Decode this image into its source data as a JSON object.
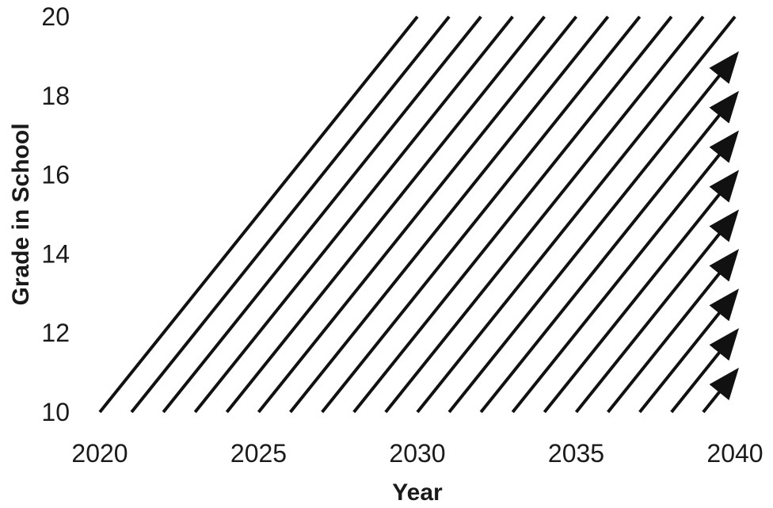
{
  "chart_data": {
    "type": "line",
    "title": "",
    "xlabel": "Year",
    "ylabel": "Grade in School",
    "xlim": [
      2020,
      2040
    ],
    "ylim": [
      10,
      20
    ],
    "x_ticks": [
      "2020",
      "2025",
      "2030",
      "2035",
      "2040"
    ],
    "y_ticks": [
      "10",
      "12",
      "14",
      "16",
      "18",
      "20"
    ],
    "grid": false,
    "legend": "none",
    "line_color": "#111111",
    "series": [
      {
        "x": [
          2020,
          2030
        ],
        "y": [
          10,
          20
        ],
        "arrow": false
      },
      {
        "x": [
          2021,
          2031
        ],
        "y": [
          10,
          20
        ],
        "arrow": false
      },
      {
        "x": [
          2022,
          2032
        ],
        "y": [
          10,
          20
        ],
        "arrow": false
      },
      {
        "x": [
          2023,
          2033
        ],
        "y": [
          10,
          20
        ],
        "arrow": false
      },
      {
        "x": [
          2024,
          2034
        ],
        "y": [
          10,
          20
        ],
        "arrow": false
      },
      {
        "x": [
          2025,
          2035
        ],
        "y": [
          10,
          20
        ],
        "arrow": false
      },
      {
        "x": [
          2026,
          2036
        ],
        "y": [
          10,
          20
        ],
        "arrow": false
      },
      {
        "x": [
          2027,
          2037
        ],
        "y": [
          10,
          20
        ],
        "arrow": false
      },
      {
        "x": [
          2028,
          2038
        ],
        "y": [
          10,
          20
        ],
        "arrow": false
      },
      {
        "x": [
          2029,
          2039
        ],
        "y": [
          10,
          20
        ],
        "arrow": false
      },
      {
        "x": [
          2030,
          2040
        ],
        "y": [
          10,
          20
        ],
        "arrow": false
      },
      {
        "x": [
          2031,
          2040
        ],
        "y": [
          10,
          19
        ],
        "arrow": true
      },
      {
        "x": [
          2032,
          2040
        ],
        "y": [
          10,
          18
        ],
        "arrow": true
      },
      {
        "x": [
          2033,
          2040
        ],
        "y": [
          10,
          17
        ],
        "arrow": true
      },
      {
        "x": [
          2034,
          2040
        ],
        "y": [
          10,
          16
        ],
        "arrow": true
      },
      {
        "x": [
          2035,
          2040
        ],
        "y": [
          10,
          15
        ],
        "arrow": true
      },
      {
        "x": [
          2036,
          2040
        ],
        "y": [
          10,
          14
        ],
        "arrow": true
      },
      {
        "x": [
          2037,
          2040
        ],
        "y": [
          10,
          13
        ],
        "arrow": true
      },
      {
        "x": [
          2038,
          2040
        ],
        "y": [
          10,
          12
        ],
        "arrow": true
      },
      {
        "x": [
          2039,
          2040
        ],
        "y": [
          10,
          11
        ],
        "arrow": true
      }
    ]
  }
}
